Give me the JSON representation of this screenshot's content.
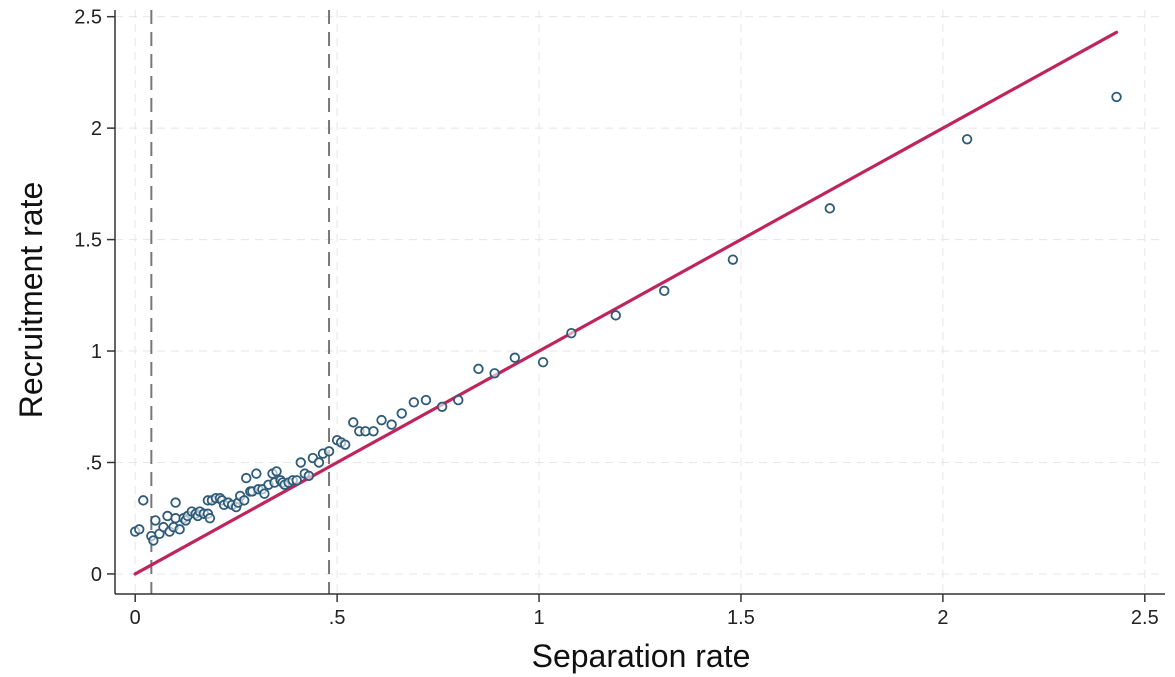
{
  "chart_data": {
    "type": "scatter",
    "title": "",
    "xlabel": "Separation rate",
    "ylabel": "Recruitment rate",
    "xlim": [
      -0.05,
      2.55
    ],
    "ylim": [
      -0.09,
      2.53
    ],
    "grid": true,
    "legend": "none",
    "xticks": [
      0,
      0.5,
      1,
      1.5,
      2,
      2.5
    ],
    "xtick_labels": [
      "0",
      ".5",
      "1",
      "1.5",
      "2",
      "2.5"
    ],
    "yticks": [
      0,
      0.5,
      1,
      1.5,
      2,
      2.5
    ],
    "ytick_labels": [
      "0",
      ".5",
      "1",
      "1.5",
      "2",
      "2.5"
    ],
    "reference_lines": {
      "vertical_dashed_x": [
        0.04,
        0.48
      ],
      "diagonal_line": {
        "from": [
          0,
          0
        ],
        "to": [
          2.43,
          2.43
        ]
      }
    },
    "colors": {
      "points": "#2e5b7a",
      "diagonal": "#c0245c",
      "grid": "#e6e6e6",
      "vlines": "#777777"
    },
    "series": [
      {
        "points": [
          [
            0.0,
            0.19
          ],
          [
            0.01,
            0.2
          ],
          [
            0.02,
            0.33
          ],
          [
            0.04,
            0.17
          ],
          [
            0.045,
            0.15
          ],
          [
            0.05,
            0.24
          ],
          [
            0.06,
            0.18
          ],
          [
            0.07,
            0.21
          ],
          [
            0.08,
            0.26
          ],
          [
            0.085,
            0.19
          ],
          [
            0.095,
            0.21
          ],
          [
            0.1,
            0.32
          ],
          [
            0.1,
            0.25
          ],
          [
            0.11,
            0.2
          ],
          [
            0.12,
            0.25
          ],
          [
            0.125,
            0.24
          ],
          [
            0.13,
            0.26
          ],
          [
            0.14,
            0.28
          ],
          [
            0.15,
            0.27
          ],
          [
            0.155,
            0.26
          ],
          [
            0.16,
            0.28
          ],
          [
            0.17,
            0.27
          ],
          [
            0.18,
            0.33
          ],
          [
            0.18,
            0.27
          ],
          [
            0.185,
            0.25
          ],
          [
            0.19,
            0.33
          ],
          [
            0.2,
            0.34
          ],
          [
            0.21,
            0.34
          ],
          [
            0.215,
            0.33
          ],
          [
            0.22,
            0.31
          ],
          [
            0.23,
            0.32
          ],
          [
            0.24,
            0.31
          ],
          [
            0.25,
            0.3
          ],
          [
            0.255,
            0.32
          ],
          [
            0.26,
            0.35
          ],
          [
            0.27,
            0.33
          ],
          [
            0.275,
            0.43
          ],
          [
            0.285,
            0.37
          ],
          [
            0.29,
            0.37
          ],
          [
            0.3,
            0.45
          ],
          [
            0.305,
            0.38
          ],
          [
            0.315,
            0.38
          ],
          [
            0.32,
            0.36
          ],
          [
            0.33,
            0.4
          ],
          [
            0.34,
            0.45
          ],
          [
            0.345,
            0.41
          ],
          [
            0.35,
            0.46
          ],
          [
            0.36,
            0.42
          ],
          [
            0.365,
            0.41
          ],
          [
            0.37,
            0.4
          ],
          [
            0.38,
            0.41
          ],
          [
            0.39,
            0.42
          ],
          [
            0.4,
            0.42
          ],
          [
            0.41,
            0.5
          ],
          [
            0.42,
            0.45
          ],
          [
            0.43,
            0.44
          ],
          [
            0.44,
            0.52
          ],
          [
            0.455,
            0.5
          ],
          [
            0.465,
            0.54
          ],
          [
            0.48,
            0.55
          ],
          [
            0.5,
            0.6
          ],
          [
            0.51,
            0.59
          ],
          [
            0.52,
            0.58
          ],
          [
            0.54,
            0.68
          ],
          [
            0.555,
            0.64
          ],
          [
            0.57,
            0.64
          ],
          [
            0.59,
            0.64
          ],
          [
            0.61,
            0.69
          ],
          [
            0.635,
            0.67
          ],
          [
            0.66,
            0.72
          ],
          [
            0.69,
            0.77
          ],
          [
            0.72,
            0.78
          ],
          [
            0.76,
            0.75
          ],
          [
            0.8,
            0.78
          ],
          [
            0.85,
            0.92
          ],
          [
            0.89,
            0.9
          ],
          [
            0.94,
            0.97
          ],
          [
            1.01,
            0.95
          ],
          [
            1.08,
            1.08
          ],
          [
            1.19,
            1.16
          ],
          [
            1.31,
            1.27
          ],
          [
            1.48,
            1.41
          ],
          [
            1.72,
            1.64
          ],
          [
            2.06,
            1.95
          ],
          [
            2.43,
            2.14
          ]
        ]
      }
    ]
  }
}
